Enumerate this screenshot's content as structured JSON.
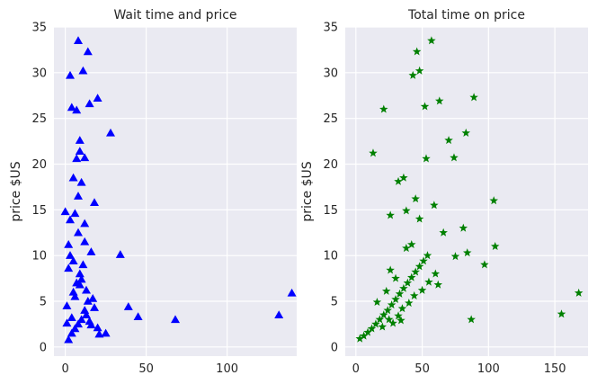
{
  "chart_data": [
    {
      "type": "scatter",
      "title": "Wait time and price",
      "xlabel": "",
      "ylabel": "price $US",
      "xlim": [
        -7,
        143
      ],
      "ylim": [
        -1,
        35
      ],
      "xticks": [
        0,
        50,
        100
      ],
      "yticks": [
        0,
        5,
        10,
        15,
        20,
        25,
        30,
        35
      ],
      "grid": true,
      "marker": "triangle",
      "color": "#0000ff",
      "points": [
        [
          8,
          33.5
        ],
        [
          14,
          32.3
        ],
        [
          3,
          29.7
        ],
        [
          11,
          30.2
        ],
        [
          20,
          27.2
        ],
        [
          15,
          26.6
        ],
        [
          4,
          26.2
        ],
        [
          7,
          25.9
        ],
        [
          28,
          23.4
        ],
        [
          9,
          22.6
        ],
        [
          7,
          20.6
        ],
        [
          12,
          20.7
        ],
        [
          9,
          21.4
        ],
        [
          5,
          18.5
        ],
        [
          10,
          18.0
        ],
        [
          8,
          16.5
        ],
        [
          18,
          15.8
        ],
        [
          0,
          14.8
        ],
        [
          6,
          14.6
        ],
        [
          3,
          13.9
        ],
        [
          12,
          13.5
        ],
        [
          34,
          10.1
        ],
        [
          2,
          11.2
        ],
        [
          16,
          10.4
        ],
        [
          39,
          4.4
        ],
        [
          45,
          3.3
        ],
        [
          68,
          3.0
        ],
        [
          132,
          3.5
        ],
        [
          140,
          5.9
        ],
        [
          25,
          1.5
        ],
        [
          21,
          1.4
        ],
        [
          16,
          2.4
        ],
        [
          2,
          0.8
        ],
        [
          4,
          1.5
        ],
        [
          6,
          2.0
        ],
        [
          8,
          2.5
        ],
        [
          10,
          3.0
        ],
        [
          12,
          4.0
        ],
        [
          14,
          5.0
        ],
        [
          5,
          6.0
        ],
        [
          7,
          7.0
        ],
        [
          9,
          8.0
        ],
        [
          11,
          9.0
        ],
        [
          3,
          10.0
        ],
        [
          1,
          4.5
        ],
        [
          13,
          3.5
        ],
        [
          15,
          2.8
        ],
        [
          6,
          5.5
        ],
        [
          4,
          3.2
        ],
        [
          9,
          6.8
        ],
        [
          17,
          5.3
        ],
        [
          2,
          8.6
        ],
        [
          12,
          11.5
        ],
        [
          8,
          12.5
        ],
        [
          18,
          4.3
        ],
        [
          20,
          2.1
        ],
        [
          1,
          2.6
        ],
        [
          10,
          7.4
        ],
        [
          5,
          9.4
        ],
        [
          13,
          6.2
        ]
      ]
    },
    {
      "type": "scatter",
      "title": "Total time on price",
      "xlabel": "",
      "ylabel": "price $US",
      "xlim": [
        -8,
        175
      ],
      "ylim": [
        -1,
        35
      ],
      "xticks": [
        0,
        50,
        100,
        150
      ],
      "yticks": [
        0,
        5,
        10,
        15,
        20,
        25,
        30,
        35
      ],
      "grid": true,
      "marker": "star",
      "color": "#008000",
      "points": [
        [
          57,
          33.5
        ],
        [
          46,
          32.3
        ],
        [
          48,
          30.2
        ],
        [
          43,
          29.7
        ],
        [
          89,
          27.3
        ],
        [
          63,
          26.9
        ],
        [
          52,
          26.3
        ],
        [
          21,
          26.0
        ],
        [
          83,
          23.4
        ],
        [
          70,
          22.6
        ],
        [
          74,
          20.7
        ],
        [
          13,
          21.2
        ],
        [
          53,
          20.6
        ],
        [
          36,
          18.5
        ],
        [
          32,
          18.1
        ],
        [
          45,
          16.2
        ],
        [
          59,
          15.5
        ],
        [
          104,
          16.0
        ],
        [
          26,
          14.4
        ],
        [
          38,
          14.9
        ],
        [
          48,
          14.0
        ],
        [
          66,
          12.5
        ],
        [
          81,
          13.0
        ],
        [
          105,
          11.0
        ],
        [
          84,
          10.3
        ],
        [
          75,
          9.9
        ],
        [
          97,
          9.0
        ],
        [
          168,
          5.9
        ],
        [
          155,
          3.6
        ],
        [
          87,
          3.0
        ],
        [
          3,
          0.9
        ],
        [
          6,
          1.2
        ],
        [
          9,
          1.6
        ],
        [
          12,
          2.0
        ],
        [
          15,
          2.5
        ],
        [
          18,
          3.0
        ],
        [
          21,
          3.5
        ],
        [
          24,
          4.0
        ],
        [
          27,
          4.6
        ],
        [
          30,
          5.2
        ],
        [
          33,
          5.8
        ],
        [
          36,
          6.4
        ],
        [
          39,
          7.0
        ],
        [
          42,
          7.6
        ],
        [
          45,
          8.2
        ],
        [
          48,
          8.8
        ],
        [
          51,
          9.4
        ],
        [
          54,
          10.0
        ],
        [
          20,
          2.2
        ],
        [
          25,
          3.0
        ],
        [
          28,
          2.6
        ],
        [
          32,
          3.4
        ],
        [
          35,
          4.2
        ],
        [
          40,
          4.8
        ],
        [
          44,
          5.6
        ],
        [
          50,
          6.2
        ],
        [
          55,
          7.1
        ],
        [
          60,
          8.0
        ],
        [
          30,
          7.5
        ],
        [
          26,
          8.4
        ],
        [
          38,
          10.8
        ],
        [
          23,
          6.1
        ],
        [
          42,
          11.2
        ],
        [
          62,
          6.8
        ],
        [
          16,
          4.9
        ],
        [
          34,
          2.9
        ]
      ]
    }
  ]
}
